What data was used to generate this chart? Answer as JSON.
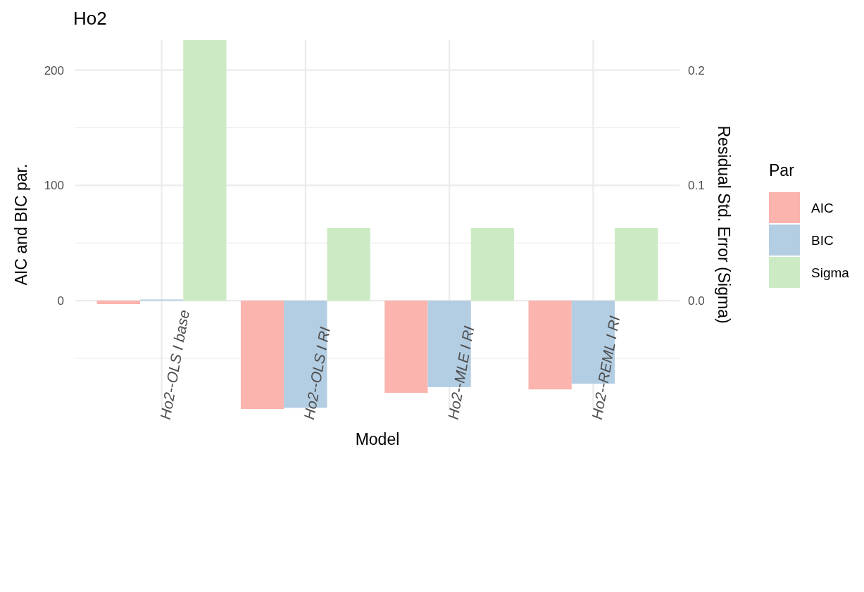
{
  "chart_data": {
    "type": "bar",
    "title": "Ho2",
    "xlabel": "Model",
    "ylabel": "AIC and BIC par.",
    "y2label": "Residual Std. Error (Sigma)",
    "legend_title": "Par",
    "categories": [
      "Ho2--OLS I base",
      "Ho2--OLS I RI",
      "Ho2--MLE I RI",
      "Ho2--REML I RI"
    ],
    "series": [
      {
        "name": "AIC",
        "color": "#fbb4ae",
        "values": [
          -3,
          -94,
          -80,
          -77
        ]
      },
      {
        "name": "BIC",
        "color": "#b3cde3",
        "values": [
          1,
          -93,
          -75,
          -72
        ]
      },
      {
        "name": "Sigma",
        "color": "#ccebc5",
        "axis": "y2",
        "values": [
          0.226,
          0.063,
          0.063,
          0.063
        ]
      }
    ],
    "ylim": [
      -94,
      226
    ],
    "yticks": [
      {
        "value": -50,
        "label": null
      },
      0,
      {
        "value": 50,
        "label": null
      },
      100,
      {
        "value": 150,
        "label": null
      },
      200
    ],
    "y2lim": [
      -0.094,
      0.226
    ],
    "y2ticks": [
      {
        "value": 0,
        "label": "0.0"
      },
      0.1,
      0.2
    ],
    "grid": true,
    "legend": "right"
  }
}
